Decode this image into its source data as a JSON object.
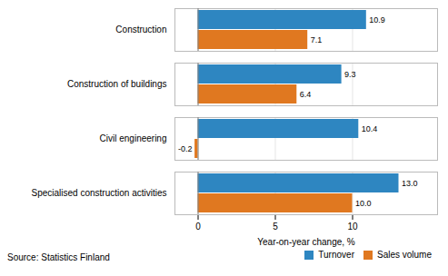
{
  "chart_data": {
    "type": "bar",
    "orientation": "horizontal",
    "categories": [
      "Construction",
      "Construction of buildings",
      "Civil engineering",
      "Specialised construction activities"
    ],
    "series": [
      {
        "name": "Turnover",
        "color": "#2E86C1",
        "values": [
          10.9,
          9.3,
          10.4,
          13.0
        ],
        "value_labels": [
          "10.9",
          "9.3",
          "10.4",
          "13.0"
        ]
      },
      {
        "name": "Sales volume",
        "color": "#E07820",
        "values": [
          7.1,
          6.4,
          -0.2,
          10.0
        ],
        "value_labels": [
          "7.1",
          "6.4",
          "-0.2",
          "10.0"
        ]
      }
    ],
    "xlabel": "Year-on-year change, %",
    "xlim": [
      -1.5,
      15.5
    ],
    "xticks": [
      0,
      5,
      10
    ],
    "grid": true,
    "legend": "lower right",
    "data_labels": true,
    "annotations": [
      "Source: Statistics Finland"
    ]
  }
}
